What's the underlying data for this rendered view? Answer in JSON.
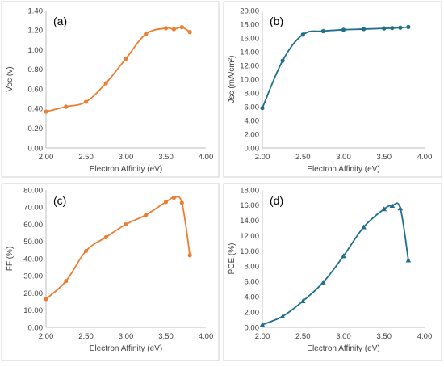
{
  "chart_data": [
    {
      "type": "line",
      "panel_label": "(a)",
      "xlabel": "Electron Affinity (eV)",
      "ylabel": "Voc (v)",
      "xlim": [
        2.0,
        4.0
      ],
      "ylim": [
        0.0,
        1.4
      ],
      "xticks": [
        "2.00",
        "2.50",
        "3.00",
        "3.50",
        "4.00"
      ],
      "yticks": [
        "0.00",
        "0.20",
        "0.40",
        "0.60",
        "0.80",
        "1.00",
        "1.20",
        "1.40"
      ],
      "color": "#ED7D31",
      "marker": "circle",
      "grid": false,
      "series": [
        {
          "x": [
            2.0,
            2.25,
            2.5,
            2.75,
            3.0,
            3.25,
            3.5,
            3.6,
            3.7,
            3.8
          ],
          "y": [
            0.37,
            0.42,
            0.47,
            0.66,
            0.91,
            1.16,
            1.22,
            1.21,
            1.23,
            1.18
          ]
        }
      ]
    },
    {
      "type": "line",
      "panel_label": "(b)",
      "xlabel": "Electron Affinity (eV)",
      "ylabel": "Jsc (mA/cm²)",
      "xlim": [
        2.0,
        4.0
      ],
      "ylim": [
        0.0,
        20.0
      ],
      "xticks": [
        "2.00",
        "2.50",
        "3.00",
        "3.50",
        "4.00"
      ],
      "yticks": [
        "0.00",
        "2.00",
        "4.00",
        "6.00",
        "8.00",
        "10.00",
        "12.00",
        "14.00",
        "16.00",
        "18.00",
        "20.00"
      ],
      "color": "#1F6E8C",
      "marker": "circle",
      "grid": false,
      "series": [
        {
          "x": [
            2.0,
            2.25,
            2.5,
            2.75,
            3.0,
            3.25,
            3.5,
            3.6,
            3.7,
            3.8
          ],
          "y": [
            5.8,
            12.7,
            16.5,
            17.0,
            17.2,
            17.3,
            17.4,
            17.45,
            17.5,
            17.6
          ]
        }
      ]
    },
    {
      "type": "line",
      "panel_label": "(c)",
      "xlabel": "Electron Affinity (eV)",
      "ylabel": "FF (%)",
      "xlim": [
        2.0,
        4.0
      ],
      "ylim": [
        0.0,
        80.0
      ],
      "xticks": [
        "2.00",
        "2.50",
        "3.00",
        "3.50",
        "4.00"
      ],
      "yticks": [
        "0.00",
        "10.00",
        "20.00",
        "30.00",
        "40.00",
        "50.00",
        "60.00",
        "70.00",
        "80.00"
      ],
      "color": "#ED7D31",
      "marker": "circle",
      "grid": false,
      "series": [
        {
          "x": [
            2.0,
            2.25,
            2.5,
            2.75,
            3.0,
            3.25,
            3.5,
            3.6,
            3.7,
            3.8
          ],
          "y": [
            16.5,
            27.0,
            44.5,
            52.5,
            60.0,
            65.5,
            73.0,
            75.5,
            72.5,
            42.0
          ]
        }
      ]
    },
    {
      "type": "line",
      "panel_label": "(d)",
      "xlabel": "Electron Affinity (eV)",
      "ylabel": "PCE (%)",
      "xlim": [
        2.0,
        4.0
      ],
      "ylim": [
        0.0,
        18.0
      ],
      "xticks": [
        "2.00",
        "2.50",
        "3.00",
        "3.50",
        "4.00"
      ],
      "yticks": [
        "0.00",
        "2.00",
        "4.00",
        "6.00",
        "8.00",
        "10.00",
        "12.00",
        "14.00",
        "16.00",
        "18.00"
      ],
      "color": "#1F6E8C",
      "marker": "triangle",
      "grid": false,
      "series": [
        {
          "x": [
            2.0,
            2.25,
            2.5,
            2.75,
            3.0,
            3.25,
            3.5,
            3.6,
            3.7,
            3.8
          ],
          "y": [
            0.35,
            1.45,
            3.45,
            5.9,
            9.35,
            13.15,
            15.5,
            15.95,
            15.6,
            8.8
          ]
        }
      ]
    }
  ]
}
